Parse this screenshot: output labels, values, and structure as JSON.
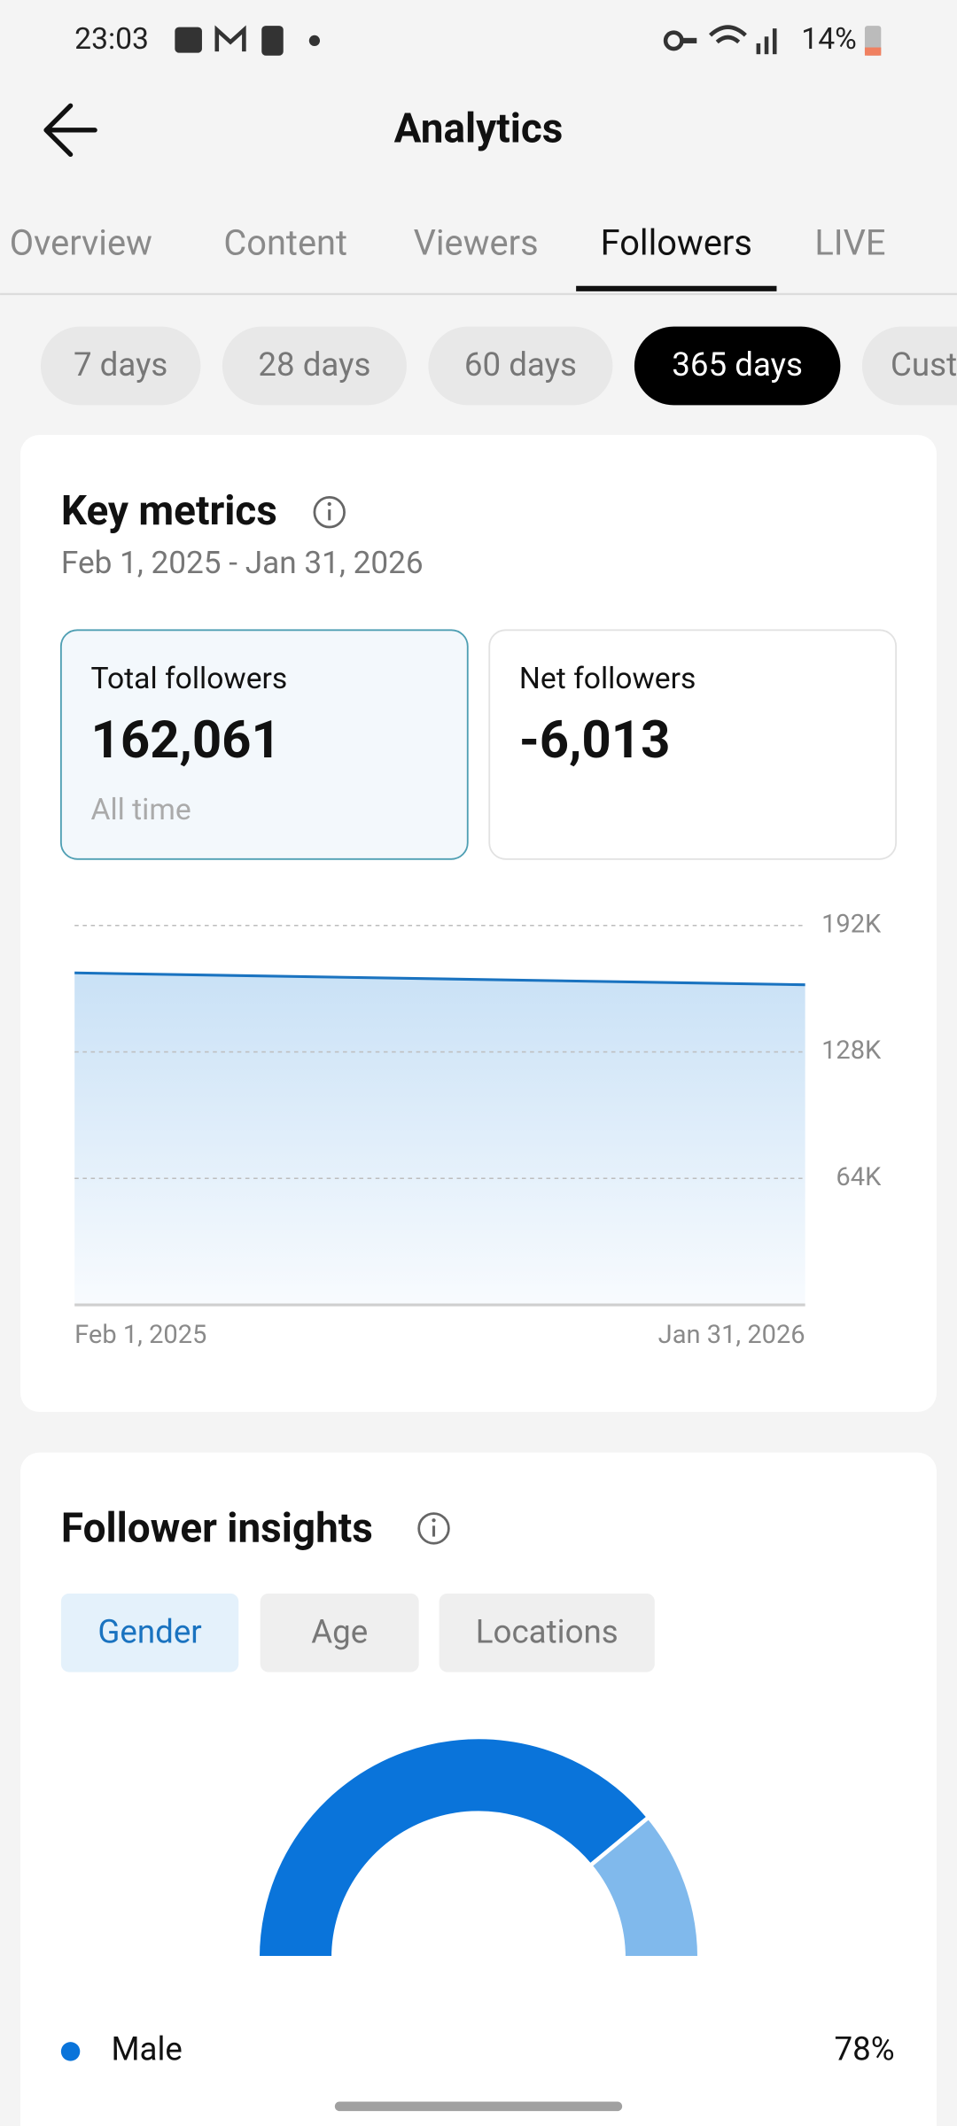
{
  "status_bar": {
    "time": "23:03",
    "battery": "14%"
  },
  "header": {
    "title": "Analytics"
  },
  "tabs": [
    "Overview",
    "Content",
    "Viewers",
    "Followers",
    "LIVE"
  ],
  "active_tab": 3,
  "periods": [
    "7 days",
    "28 days",
    "60 days",
    "365 days",
    "Custom"
  ],
  "active_period": 3,
  "key_metrics": {
    "title": "Key metrics",
    "date_range": "Feb 1, 2025 - Jan 31, 2026",
    "cards": [
      {
        "label": "Total followers",
        "value": "162,061",
        "note": "All time"
      },
      {
        "label": "Net followers",
        "value": "-6,013"
      }
    ]
  },
  "follower_insights": {
    "title": "Follower insights",
    "tabs": [
      "Gender",
      "Age",
      "Locations"
    ],
    "active_tab": 0
  },
  "chart_data": [
    {
      "type": "line",
      "categories": [
        "Feb 1, 2025",
        "Jan 31, 2026"
      ],
      "series": [
        {
          "name": "Total followers",
          "color": "#1a73c0",
          "values": [
            168000,
            162000
          ]
        }
      ],
      "ylim": [
        0,
        192000
      ],
      "yticks": [
        {
          "value": 64000,
          "label": "64K"
        },
        {
          "value": 128000,
          "label": "128K"
        },
        {
          "value": 192000,
          "label": "192K"
        }
      ],
      "grid": true
    },
    {
      "type": "pie",
      "categories": [
        "Male",
        null
      ],
      "values": [
        78,
        22
      ],
      "value_labels": [
        "78%",
        null
      ],
      "colors": [
        "#0a74da",
        "#80b9ec"
      ]
    }
  ]
}
